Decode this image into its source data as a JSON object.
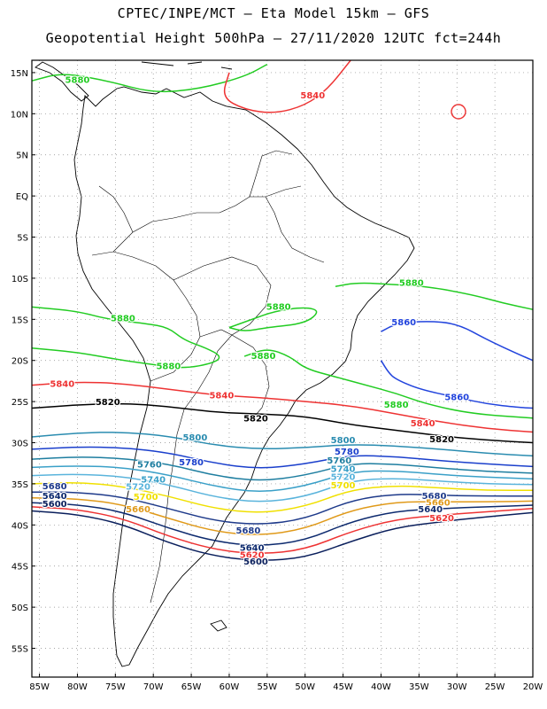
{
  "title_line1": "CPTEC/INPE/MCT –  Eta Model 15km – GFS",
  "title_line2": "Geopotential Height 500hPa – 27/11/2020 12UTC fct=244h",
  "lon_ticks": [
    "85W",
    "80W",
    "75W",
    "70W",
    "65W",
    "60W",
    "55W",
    "50W",
    "45W",
    "40W",
    "35W",
    "30W",
    "25W",
    "20W"
  ],
  "lat_ticks": [
    "15N",
    "10N",
    "5N",
    "EQ",
    "5S",
    "10S",
    "15S",
    "20S",
    "25S",
    "30S",
    "35S",
    "40S",
    "45S",
    "50S",
    "55S"
  ],
  "map_bounds": {
    "lon_min": -86,
    "lon_max": -20,
    "lat_min": -58.5,
    "lat_max": 16.5
  },
  "colors": {
    "5880": "#22cc22",
    "5860": "#2244dd",
    "5840": "#ee3333",
    "5820": "#000000",
    "5800": "#2a8cb0",
    "5780": "#1a3fcc",
    "5760": "#1e7ea0",
    "5740": "#3aa0c8",
    "5720": "#5ab4dc",
    "5700": "#f0e000",
    "5680": "#1e3a8a",
    "5660": "#e09a1a",
    "5640": "#0d2a6e",
    "5620": "#ee3333",
    "5600": "#0a1f5c"
  },
  "contours": [
    {
      "value": 5880,
      "points": [
        [
          -86,
          14
        ],
        [
          -82,
          15
        ],
        [
          -76,
          14
        ],
        [
          -70,
          12.5
        ],
        [
          -64,
          13
        ],
        [
          -58,
          14.5
        ],
        [
          -55,
          16
        ]
      ]
    },
    {
      "value": 5880,
      "points": [
        [
          -86,
          -13.5
        ],
        [
          -80,
          -14
        ],
        [
          -76,
          -15
        ],
        [
          -71,
          -15.5
        ],
        [
          -68,
          -16
        ],
        [
          -66,
          -17.5
        ],
        [
          -63,
          -18.5
        ],
        [
          -61,
          -19.5
        ],
        [
          -62,
          -20.3
        ],
        [
          -66,
          -21
        ],
        [
          -70,
          -20.5
        ],
        [
          -74,
          -20
        ],
        [
          -80,
          -19
        ],
        [
          -86,
          -18.5
        ]
      ]
    },
    {
      "value": 5880,
      "points": [
        [
          -60,
          -16
        ],
        [
          -57,
          -15
        ],
        [
          -54,
          -14
        ],
        [
          -50,
          -13.5
        ],
        [
          -48,
          -14
        ],
        [
          -50,
          -15.5
        ],
        [
          -55,
          -16
        ],
        [
          -58,
          -16.5
        ],
        [
          -60,
          -16
        ]
      ]
    },
    {
      "value": 5880,
      "points": [
        [
          -58,
          -19.5
        ],
        [
          -55,
          -18.5
        ],
        [
          -52,
          -19.5
        ],
        [
          -50,
          -21
        ],
        [
          -46,
          -22
        ],
        [
          -42,
          -23
        ],
        [
          -38,
          -24
        ],
        [
          -34,
          -25.3
        ],
        [
          -28,
          -26.5
        ],
        [
          -20,
          -27
        ]
      ]
    },
    {
      "value": 5880,
      "points": [
        [
          -46,
          -11
        ],
        [
          -43,
          -10.5
        ],
        [
          -38,
          -10.8
        ],
        [
          -34,
          -11
        ],
        [
          -28,
          -12
        ],
        [
          -24,
          -13
        ],
        [
          -20,
          -13.8
        ]
      ]
    },
    {
      "value": 5860,
      "points": [
        [
          -40,
          -16.5
        ],
        [
          -38,
          -15.5
        ],
        [
          -34,
          -15.2
        ],
        [
          -30,
          -15.5
        ],
        [
          -26,
          -17.5
        ],
        [
          -22,
          -19.2
        ],
        [
          -20,
          -20
        ]
      ]
    },
    {
      "value": 5860,
      "points": [
        [
          -40,
          -20
        ],
        [
          -39,
          -21.5
        ],
        [
          -38,
          -22.3
        ],
        [
          -35,
          -23.5
        ],
        [
          -30,
          -24.5
        ],
        [
          -26,
          -25.3
        ],
        [
          -22,
          -25.7
        ],
        [
          -20,
          -25.8
        ]
      ]
    },
    {
      "value": 5840,
      "points": [
        [
          -86,
          -23
        ],
        [
          -80,
          -22.6
        ],
        [
          -74,
          -22.8
        ],
        [
          -68,
          -23.5
        ],
        [
          -62,
          -24.2
        ],
        [
          -56,
          -24.5
        ],
        [
          -50,
          -25
        ],
        [
          -44,
          -25.5
        ],
        [
          -38,
          -26.5
        ],
        [
          -32,
          -27.5
        ],
        [
          -26,
          -28.3
        ],
        [
          -20,
          -28.7
        ]
      ]
    },
    {
      "value": 5840,
      "points": [
        [
          -60,
          15
        ],
        [
          -61,
          12
        ],
        [
          -58,
          10.5
        ],
        [
          -54,
          10
        ],
        [
          -50,
          11
        ],
        [
          -47,
          13
        ],
        [
          -44,
          16.5
        ]
      ]
    },
    {
      "value": 5820,
      "points": [
        [
          -86,
          -25.8
        ],
        [
          -80,
          -25.4
        ],
        [
          -74,
          -25.2
        ],
        [
          -68,
          -25.6
        ],
        [
          -62,
          -26.3
        ],
        [
          -56,
          -26.5
        ],
        [
          -50,
          -26.8
        ],
        [
          -44,
          -27.8
        ],
        [
          -38,
          -28.5
        ],
        [
          -32,
          -29.2
        ],
        [
          -26,
          -29.7
        ],
        [
          -20,
          -30
        ]
      ]
    },
    {
      "value": 5800,
      "points": [
        [
          -86,
          -29.3
        ],
        [
          -80,
          -28.8
        ],
        [
          -74,
          -28.7
        ],
        [
          -68,
          -29.2
        ],
        [
          -62,
          -30.3
        ],
        [
          -56,
          -30.8
        ],
        [
          -50,
          -30.6
        ],
        [
          -44,
          -30.2
        ],
        [
          -38,
          -30.4
        ],
        [
          -32,
          -30.8
        ],
        [
          -26,
          -31.3
        ],
        [
          -20,
          -31.6
        ]
      ]
    },
    {
      "value": 5780,
      "points": [
        [
          -86,
          -30.8
        ],
        [
          -80,
          -30.5
        ],
        [
          -74,
          -30.6
        ],
        [
          -68,
          -31.2
        ],
        [
          -62,
          -32.5
        ],
        [
          -56,
          -33.2
        ],
        [
          -50,
          -32.6
        ],
        [
          -44,
          -31.5
        ],
        [
          -38,
          -31.7
        ],
        [
          -32,
          -32.2
        ],
        [
          -26,
          -32.6
        ],
        [
          -20,
          -32.9
        ]
      ]
    },
    {
      "value": 5760,
      "points": [
        [
          -86,
          -32
        ],
        [
          -80,
          -31.7
        ],
        [
          -74,
          -31.9
        ],
        [
          -68,
          -32.6
        ],
        [
          -62,
          -34
        ],
        [
          -56,
          -34.7
        ],
        [
          -50,
          -34
        ],
        [
          -44,
          -32.5
        ],
        [
          -38,
          -32.6
        ],
        [
          -32,
          -33.1
        ],
        [
          -26,
          -33.5
        ],
        [
          -20,
          -33.7
        ]
      ]
    },
    {
      "value": 5740,
      "points": [
        [
          -86,
          -33
        ],
        [
          -80,
          -32.8
        ],
        [
          -74,
          -33
        ],
        [
          -68,
          -33.9
        ],
        [
          -62,
          -35.3
        ],
        [
          -56,
          -36.1
        ],
        [
          -50,
          -35.3
        ],
        [
          -44,
          -33.5
        ],
        [
          -38,
          -33.4
        ],
        [
          -32,
          -33.9
        ],
        [
          -26,
          -34.2
        ],
        [
          -20,
          -34.4
        ]
      ]
    },
    {
      "value": 5720,
      "points": [
        [
          -86,
          -34
        ],
        [
          -80,
          -33.8
        ],
        [
          -74,
          -34.1
        ],
        [
          -68,
          -35.1
        ],
        [
          -62,
          -36.6
        ],
        [
          -56,
          -37.3
        ],
        [
          -50,
          -36.6
        ],
        [
          -44,
          -34.6
        ],
        [
          -38,
          -34.3
        ],
        [
          -32,
          -34.7
        ],
        [
          -26,
          -35
        ],
        [
          -20,
          -35.1
        ]
      ]
    },
    {
      "value": 5700,
      "points": [
        [
          -86,
          -35
        ],
        [
          -80,
          -34.8
        ],
        [
          -74,
          -35.3
        ],
        [
          -68,
          -36.5
        ],
        [
          -62,
          -38
        ],
        [
          -56,
          -38.6
        ],
        [
          -50,
          -37.8
        ],
        [
          -44,
          -35.7
        ],
        [
          -38,
          -35.2
        ],
        [
          -32,
          -35.5
        ],
        [
          -26,
          -35.8
        ],
        [
          -20,
          -35.8
        ]
      ]
    },
    {
      "value": 5680,
      "points": [
        [
          -86,
          -36
        ],
        [
          -80,
          -36
        ],
        [
          -74,
          -36.6
        ],
        [
          -68,
          -38
        ],
        [
          -62,
          -39.5
        ],
        [
          -56,
          -40
        ],
        [
          -50,
          -39.3
        ],
        [
          -44,
          -37
        ],
        [
          -38,
          -36.2
        ],
        [
          -32,
          -36.4
        ],
        [
          -26,
          -36.5
        ],
        [
          -20,
          -36.5
        ]
      ]
    },
    {
      "value": 5660,
      "points": [
        [
          -86,
          -36.7
        ],
        [
          -80,
          -36.8
        ],
        [
          -74,
          -37.5
        ],
        [
          -68,
          -39.2
        ],
        [
          -62,
          -40.8
        ],
        [
          -56,
          -41.3
        ],
        [
          -50,
          -40.5
        ],
        [
          -44,
          -38.2
        ],
        [
          -38,
          -37.2
        ],
        [
          -32,
          -37.2
        ],
        [
          -26,
          -37.2
        ],
        [
          -20,
          -37.1
        ]
      ]
    },
    {
      "value": 5640,
      "points": [
        [
          -86,
          -37.3
        ],
        [
          -80,
          -37.5
        ],
        [
          -74,
          -38.4
        ],
        [
          -68,
          -40.4
        ],
        [
          -62,
          -42
        ],
        [
          -56,
          -42.6
        ],
        [
          -50,
          -41.9
        ],
        [
          -44,
          -39.6
        ],
        [
          -38,
          -38.3
        ],
        [
          -32,
          -38
        ],
        [
          -26,
          -37.8
        ],
        [
          -20,
          -37.6
        ]
      ]
    },
    {
      "value": 5620,
      "points": [
        [
          -86,
          -37.8
        ],
        [
          -80,
          -38.1
        ],
        [
          -74,
          -39.2
        ],
        [
          -68,
          -41.4
        ],
        [
          -62,
          -43
        ],
        [
          -56,
          -43.6
        ],
        [
          -50,
          -43
        ],
        [
          -44,
          -40.8
        ],
        [
          -38,
          -39.3
        ],
        [
          -32,
          -38.8
        ],
        [
          -26,
          -38.4
        ],
        [
          -20,
          -38
        ]
      ]
    },
    {
      "value": 5600,
      "points": [
        [
          -86,
          -38.3
        ],
        [
          -80,
          -38.7
        ],
        [
          -74,
          -39.9
        ],
        [
          -68,
          -42.2
        ],
        [
          -62,
          -43.8
        ],
        [
          -56,
          -44.4
        ],
        [
          -50,
          -44
        ],
        [
          -44,
          -42
        ],
        [
          -38,
          -40.3
        ],
        [
          -32,
          -39.6
        ],
        [
          -26,
          -39
        ],
        [
          -20,
          -38.5
        ]
      ]
    }
  ],
  "contour_labels": [
    {
      "text": "5880",
      "value": 5880,
      "lon": -80,
      "lat": 14.2
    },
    {
      "text": "5880",
      "value": 5880,
      "lon": -74,
      "lat": -14.8
    },
    {
      "text": "5880",
      "value": 5880,
      "lon": -68,
      "lat": -20.6
    },
    {
      "text": "5880",
      "value": 5880,
      "lon": -53.5,
      "lat": -13.4
    },
    {
      "text": "5880",
      "value": 5880,
      "lon": -55.5,
      "lat": -19.4
    },
    {
      "text": "5880",
      "value": 5880,
      "lon": -36,
      "lat": -10.5
    },
    {
      "text": "5880",
      "value": 5880,
      "lon": -38,
      "lat": -25.3
    },
    {
      "text": "5860",
      "value": 5860,
      "lon": -37,
      "lat": -15.3
    },
    {
      "text": "5860",
      "value": 5860,
      "lon": -30,
      "lat": -24.4
    },
    {
      "text": "5840",
      "value": 5840,
      "lon": -49,
      "lat": 12.3
    },
    {
      "text": "5840",
      "value": 5840,
      "lon": -82,
      "lat": -22.8
    },
    {
      "text": "5840",
      "value": 5840,
      "lon": -61,
      "lat": -24.2
    },
    {
      "text": "5840",
      "value": 5840,
      "lon": -34.5,
      "lat": -27.6
    },
    {
      "text": "5820",
      "value": 5820,
      "lon": -76,
      "lat": -25.0
    },
    {
      "text": "5820",
      "value": 5820,
      "lon": -56.5,
      "lat": -27.0
    },
    {
      "text": "5820",
      "value": 5820,
      "lon": -32,
      "lat": -29.5
    },
    {
      "text": "5800",
      "value": 5800,
      "lon": -64.5,
      "lat": -29.3
    },
    {
      "text": "5800",
      "value": 5800,
      "lon": -45,
      "lat": -29.6
    },
    {
      "text": "5780",
      "value": 5780,
      "lon": -65,
      "lat": -32.3
    },
    {
      "text": "5780",
      "value": 5780,
      "lon": -44.5,
      "lat": -31.0
    },
    {
      "text": "5760",
      "value": 5760,
      "lon": -70.5,
      "lat": -32.6
    },
    {
      "text": "5760",
      "value": 5760,
      "lon": -45.5,
      "lat": -32.1
    },
    {
      "text": "5740",
      "value": 5740,
      "lon": -70,
      "lat": -34.4
    },
    {
      "text": "5740",
      "value": 5740,
      "lon": -45,
      "lat": -33.1
    },
    {
      "text": "5720",
      "value": 5720,
      "lon": -72,
      "lat": -35.3
    },
    {
      "text": "5720",
      "value": 5720,
      "lon": -45,
      "lat": -34.1
    },
    {
      "text": "5700",
      "value": 5700,
      "lon": -71,
      "lat": -36.5
    },
    {
      "text": "5700",
      "value": 5700,
      "lon": -45,
      "lat": -35.1
    },
    {
      "text": "5680",
      "value": 5680,
      "lon": -83,
      "lat": -35.2
    },
    {
      "text": "5680",
      "value": 5680,
      "lon": -57.5,
      "lat": -40.6
    },
    {
      "text": "5680",
      "value": 5680,
      "lon": -33,
      "lat": -36.4
    },
    {
      "text": "5660",
      "value": 5660,
      "lon": -72,
      "lat": -38.0
    },
    {
      "text": "5660",
      "value": 5660,
      "lon": -32.5,
      "lat": -37.2
    },
    {
      "text": "5640",
      "value": 5640,
      "lon": -83,
      "lat": -36.4
    },
    {
      "text": "5640",
      "value": 5640,
      "lon": -57,
      "lat": -42.7
    },
    {
      "text": "5640",
      "value": 5640,
      "lon": -33.5,
      "lat": -38.0
    },
    {
      "text": "5620",
      "value": 5620,
      "lon": -57,
      "lat": -43.6
    },
    {
      "text": "5620",
      "value": 5620,
      "lon": -32,
      "lat": -39.1
    },
    {
      "text": "5600",
      "value": 5600,
      "lon": -83,
      "lat": -37.4
    },
    {
      "text": "5600",
      "value": 5600,
      "lon": -56.5,
      "lat": -44.4
    }
  ]
}
